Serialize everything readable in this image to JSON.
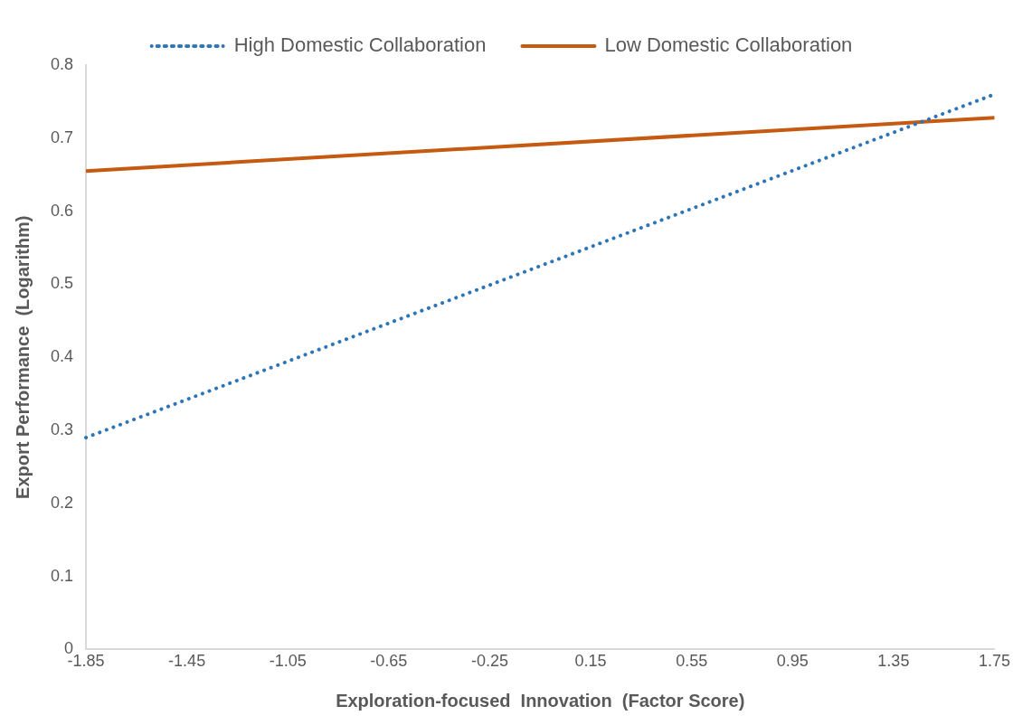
{
  "chart_data": {
    "type": "line",
    "xlabel": "Exploration-focused  Innovation  (Factor Score)",
    "ylabel": "Export Performance  (Logarithm)",
    "x": [
      -1.85,
      1.75
    ],
    "series": [
      {
        "name": "High Domestic Collaboration",
        "color": "#2e75b6",
        "values": [
          0.29,
          0.76
        ],
        "line_style": "dotted"
      },
      {
        "name": "Low Domestic Collaboration",
        "color": "#c55a11",
        "values": [
          0.655,
          0.728
        ],
        "line_style": "solid"
      }
    ],
    "xlim": [
      -1.85,
      1.75
    ],
    "xticks": [
      -1.85,
      -1.45,
      -1.05,
      -0.65,
      -0.25,
      0.15,
      0.55,
      0.95,
      1.35,
      1.75
    ],
    "ylim": [
      0,
      0.8
    ],
    "yticks": [
      0,
      0.1,
      0.2,
      0.3,
      0.4,
      0.5,
      0.6,
      0.7,
      0.8
    ],
    "grid": false,
    "legend": "top",
    "marker": "none"
  }
}
